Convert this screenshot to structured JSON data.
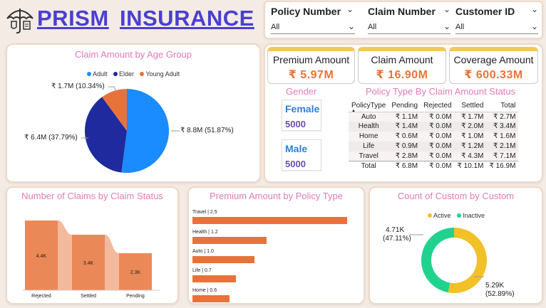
{
  "header": {
    "logo_icon": "umbrella-shield-icon",
    "title_word1": "PRISM",
    "title_word2": "INSURANCE"
  },
  "filters": [
    {
      "label": "Policy Number",
      "value": "All"
    },
    {
      "label": "Claim Number",
      "value": "All"
    },
    {
      "label": "Customer ID",
      "value": "All"
    }
  ],
  "age_chart": {
    "title": "Claim Amount by Age Group",
    "legend": [
      "Adult",
      "Elder",
      "Young Adult"
    ],
    "labels": [
      "₹ 8.8M (51.87%)",
      "₹ 6.4M (37.79%)",
      "₹ 1.7M (10.34%)"
    ]
  },
  "kpis": [
    {
      "title": "Premium Amount",
      "value": "₹ 5.97M"
    },
    {
      "title": "Claim Amount",
      "value": "₹ 16.90M"
    },
    {
      "title": "Coverage Amount",
      "value": "₹ 600.33M"
    }
  ],
  "gender": {
    "title": "Gender",
    "items": [
      {
        "label": "Female",
        "value": "5000"
      },
      {
        "label": "Male",
        "value": "5000"
      }
    ]
  },
  "policy_table": {
    "title": "Policy Type By Claim Amount Status",
    "columns": [
      "PolicyType",
      "Pending",
      "Rejected",
      "Settled",
      "Total"
    ],
    "rows": [
      [
        "Auto",
        "₹ 1.1M",
        "₹ 0.0M",
        "₹ 1.7M",
        "₹ 2.7M"
      ],
      [
        "Health",
        "₹ 1.4M",
        "₹ 0.0M",
        "₹ 2.0M",
        "₹ 3.4M"
      ],
      [
        "Home",
        "₹ 0.6M",
        "₹ 0.0M",
        "₹ 1.0M",
        "₹ 1.6M"
      ],
      [
        "Life",
        "₹ 0.9M",
        "₹ 0.0M",
        "₹ 1.2M",
        "₹ 2.1M"
      ],
      [
        "Travel",
        "₹ 2.8M",
        "₹ 0.0M",
        "₹ 4.3M",
        "₹ 7.1M"
      ]
    ],
    "total": [
      "Total",
      "₹ 6.8M",
      "₹ 0.0M",
      "₹ 10.1M",
      "₹ 16.9M"
    ]
  },
  "claims_status": {
    "title": "Number of Claims by Claim Status",
    "labels": [
      "4.4K",
      "3.4K",
      "2.3K"
    ]
  },
  "premium_policy": {
    "title": "Premium Amount by Policy Type",
    "labels": [
      "Travel | 2.5",
      "Health | 1.2",
      "Auto | 1.0",
      "Life | 0.7",
      "Home | 0.6"
    ]
  },
  "customer_status": {
    "title": "Count of Custom by Custom",
    "legend": [
      "Active",
      "Inactive"
    ],
    "label_inactive_1": "4.71K",
    "label_inactive_2": "(47.11%)",
    "label_active_1": "5.29K",
    "label_active_2": "(52.89%)"
  },
  "colors": {
    "adult": "#1a8cff",
    "elder": "#1f2a9e",
    "young_adult": "#e8733a",
    "active": "#f2c027",
    "inactive": "#1fd38f",
    "accent": "#e8733a",
    "title_pink": "#e07bb8"
  },
  "chart_data": [
    {
      "type": "pie",
      "title": "Claim Amount by Age Group",
      "categories": [
        "Adult",
        "Elder",
        "Young Adult"
      ],
      "values": [
        8.8,
        6.4,
        1.7
      ],
      "percentages": [
        51.87,
        37.79,
        10.34
      ],
      "legend": "top"
    },
    {
      "type": "bar",
      "title": "Number of Claims by Claim Status",
      "categories": [
        "Rejected",
        "Settled",
        "Pending"
      ],
      "values": [
        4.4,
        3.4,
        2.3
      ]
    },
    {
      "type": "bar",
      "title": "Premium Amount by Policy Type",
      "categories": [
        "Travel",
        "Health",
        "Auto",
        "Life",
        "Home"
      ],
      "values": [
        2.5,
        1.2,
        1.0,
        0.7,
        0.6
      ]
    },
    {
      "type": "pie",
      "title": "Count of Custom by Custom",
      "categories": [
        "Active",
        "Inactive"
      ],
      "values": [
        5.29,
        4.71
      ],
      "percentages": [
        52.89,
        47.11
      ],
      "legend": "top"
    }
  ]
}
